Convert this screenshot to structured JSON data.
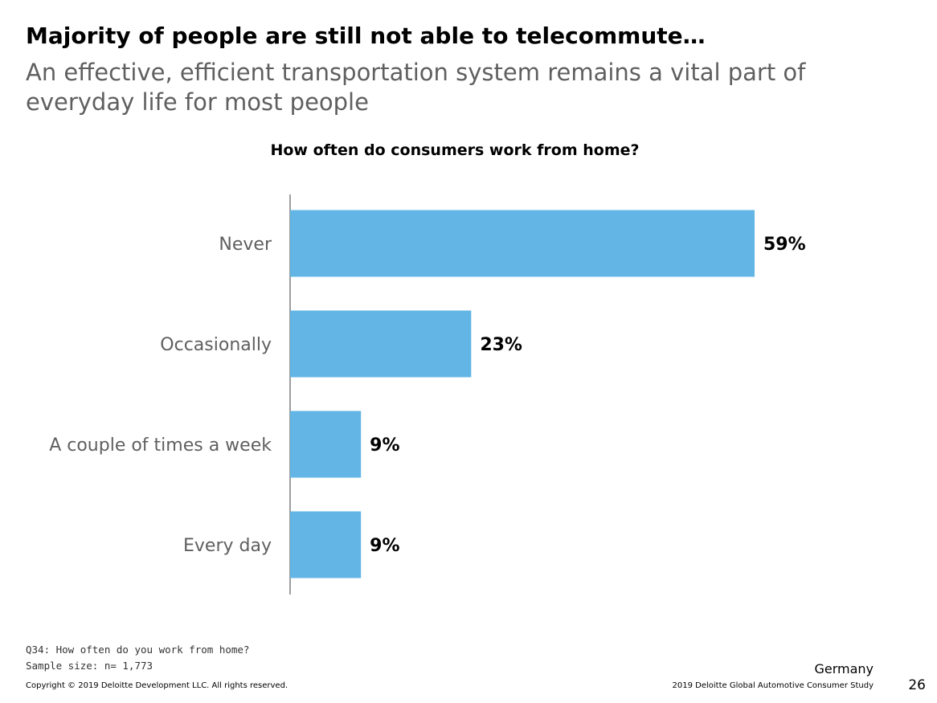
{
  "header": {
    "title": "Majority of people are still not able to telecommute…",
    "subtitle": "An effective, efficient transportation system remains a vital part of everyday life for most people"
  },
  "chart_data": {
    "type": "bar",
    "orientation": "horizontal",
    "title": "How often do consumers work from home?",
    "categories": [
      "Never",
      "Occasionally",
      "A couple of times a week",
      "Every day"
    ],
    "values": [
      59,
      23,
      9,
      9
    ],
    "value_labels": [
      "59%",
      "23%",
      "9%",
      "9%"
    ],
    "xlim": [
      0,
      60
    ],
    "grid": false,
    "bar_color": "#62b5e5"
  },
  "footnotes": {
    "question": "Q34: How often do you work from home?",
    "sample": "Sample size: n= 1,773"
  },
  "footer": {
    "copyright": "Copyright © 2019 Deloitte Development LLC. All rights reserved.",
    "country": "Germany",
    "study": "2019 Deloitte Global Automotive Consumer Study",
    "page_number": "26"
  }
}
